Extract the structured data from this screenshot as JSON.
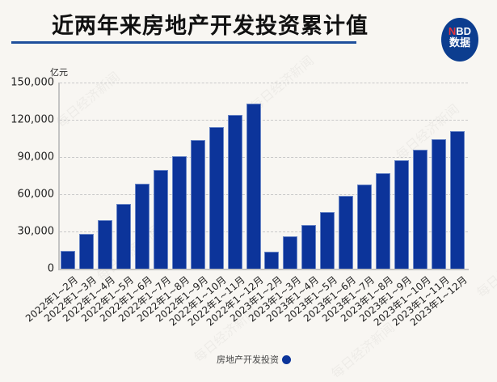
{
  "header": {
    "title": "近两年来房地产开发投资累计值",
    "logo_line1_red": "N",
    "logo_line1_rest": "BD",
    "logo_line2": "数据"
  },
  "watermark": "每日经济新闻",
  "colors": {
    "bar": "#0c349a",
    "rule": "#1e4f9c",
    "logo_bg": "#0c3d8f",
    "logo_accent": "#e8323a",
    "background": "#f8f6f2"
  },
  "chart_data": {
    "type": "bar",
    "title": "近两年来房地产开发投资累计值",
    "xlabel": "",
    "ylabel": "亿元",
    "ylim": [
      0,
      150000
    ],
    "yticks": [
      "0",
      "30,000",
      "60,000",
      "90,000",
      "120,000",
      "150,000"
    ],
    "grid": true,
    "legend_position": "bottom",
    "categories": [
      "2022年1~2月",
      "2022年1~3月",
      "2022年1~4月",
      "2022年1~5月",
      "2022年1~6月",
      "2022年1~7月",
      "2022年1~8月",
      "2022年1~9月",
      "2022年1~10月",
      "2022年1~11月",
      "2022年1~12月",
      "2023年1~2月",
      "2023年1~3月",
      "2023年1~4月",
      "2023年1~5月",
      "2023年1~6月",
      "2023年1~7月",
      "2023年1~8月",
      "2023年1~9月",
      "2023年1~10月",
      "2023年1~11月",
      "2023年1~12月"
    ],
    "series": [
      {
        "name": "房地产开发投资",
        "values": [
          14499,
          27765,
          39154,
          52134,
          68314,
          79462,
          90809,
          103559,
          113945,
          123863,
          132895,
          13669,
          25974,
          35514,
          45701,
          58550,
          67717,
          76900,
          87269,
          95922,
          104045,
          110913
        ]
      }
    ]
  },
  "legend": {
    "label": "房地产开发投资"
  }
}
